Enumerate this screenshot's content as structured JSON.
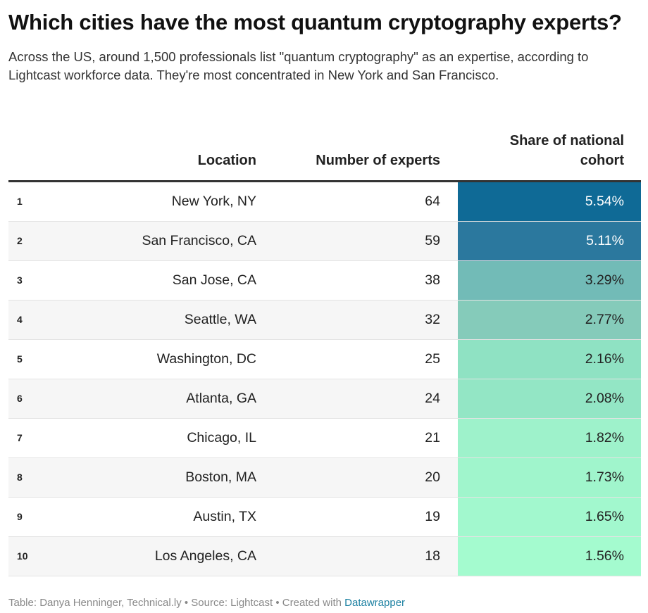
{
  "header": {
    "title": "Which cities have the most quantum cryptography experts?",
    "subtitle": "Across the US, around 1,500 professionals list \"quantum cryptography\" as an expertise, according to Lightcast workforce data. They're most concentrated in New York and San Francisco."
  },
  "table": {
    "columns": [
      "Location",
      "Number of experts",
      "Share of national cohort"
    ],
    "rows": [
      [
        1,
        "New York, NY",
        64,
        "5.54%"
      ],
      [
        2,
        "San Francisco, CA",
        59,
        "5.11%"
      ],
      [
        3,
        "San Jose, CA",
        38,
        "3.29%"
      ],
      [
        4,
        "Seattle, WA",
        32,
        "2.77%"
      ],
      [
        5,
        "Washington, DC",
        25,
        "2.16%"
      ],
      [
        6,
        "Atlanta, GA",
        24,
        "2.08%"
      ],
      [
        7,
        "Chicago, IL",
        21,
        "1.82%"
      ],
      [
        8,
        "Boston, MA",
        20,
        "1.73%"
      ],
      [
        9,
        "Austin, TX",
        19,
        "1.65%"
      ],
      [
        10,
        "Los Angeles, CA",
        18,
        "1.56%"
      ]
    ],
    "cell_colors": [
      "#0f6a96",
      "#2b789e",
      "#72bbb7",
      "#85cbba",
      "#8fe2c3",
      "#93e6c5",
      "#9ef2cb",
      "#a0f5cc",
      "#a2f8ce",
      "#a4fbcf"
    ],
    "cell_text_colors": [
      "#ffffff",
      "#ffffff",
      "#222222",
      "#222222",
      "#222222",
      "#222222",
      "#222222",
      "#222222",
      "#222222",
      "#222222"
    ]
  },
  "footer": {
    "text": "Table: Danya Henninger, Technical.ly • Source: Lightcast • Created with",
    "link": "Datawrapper"
  }
}
